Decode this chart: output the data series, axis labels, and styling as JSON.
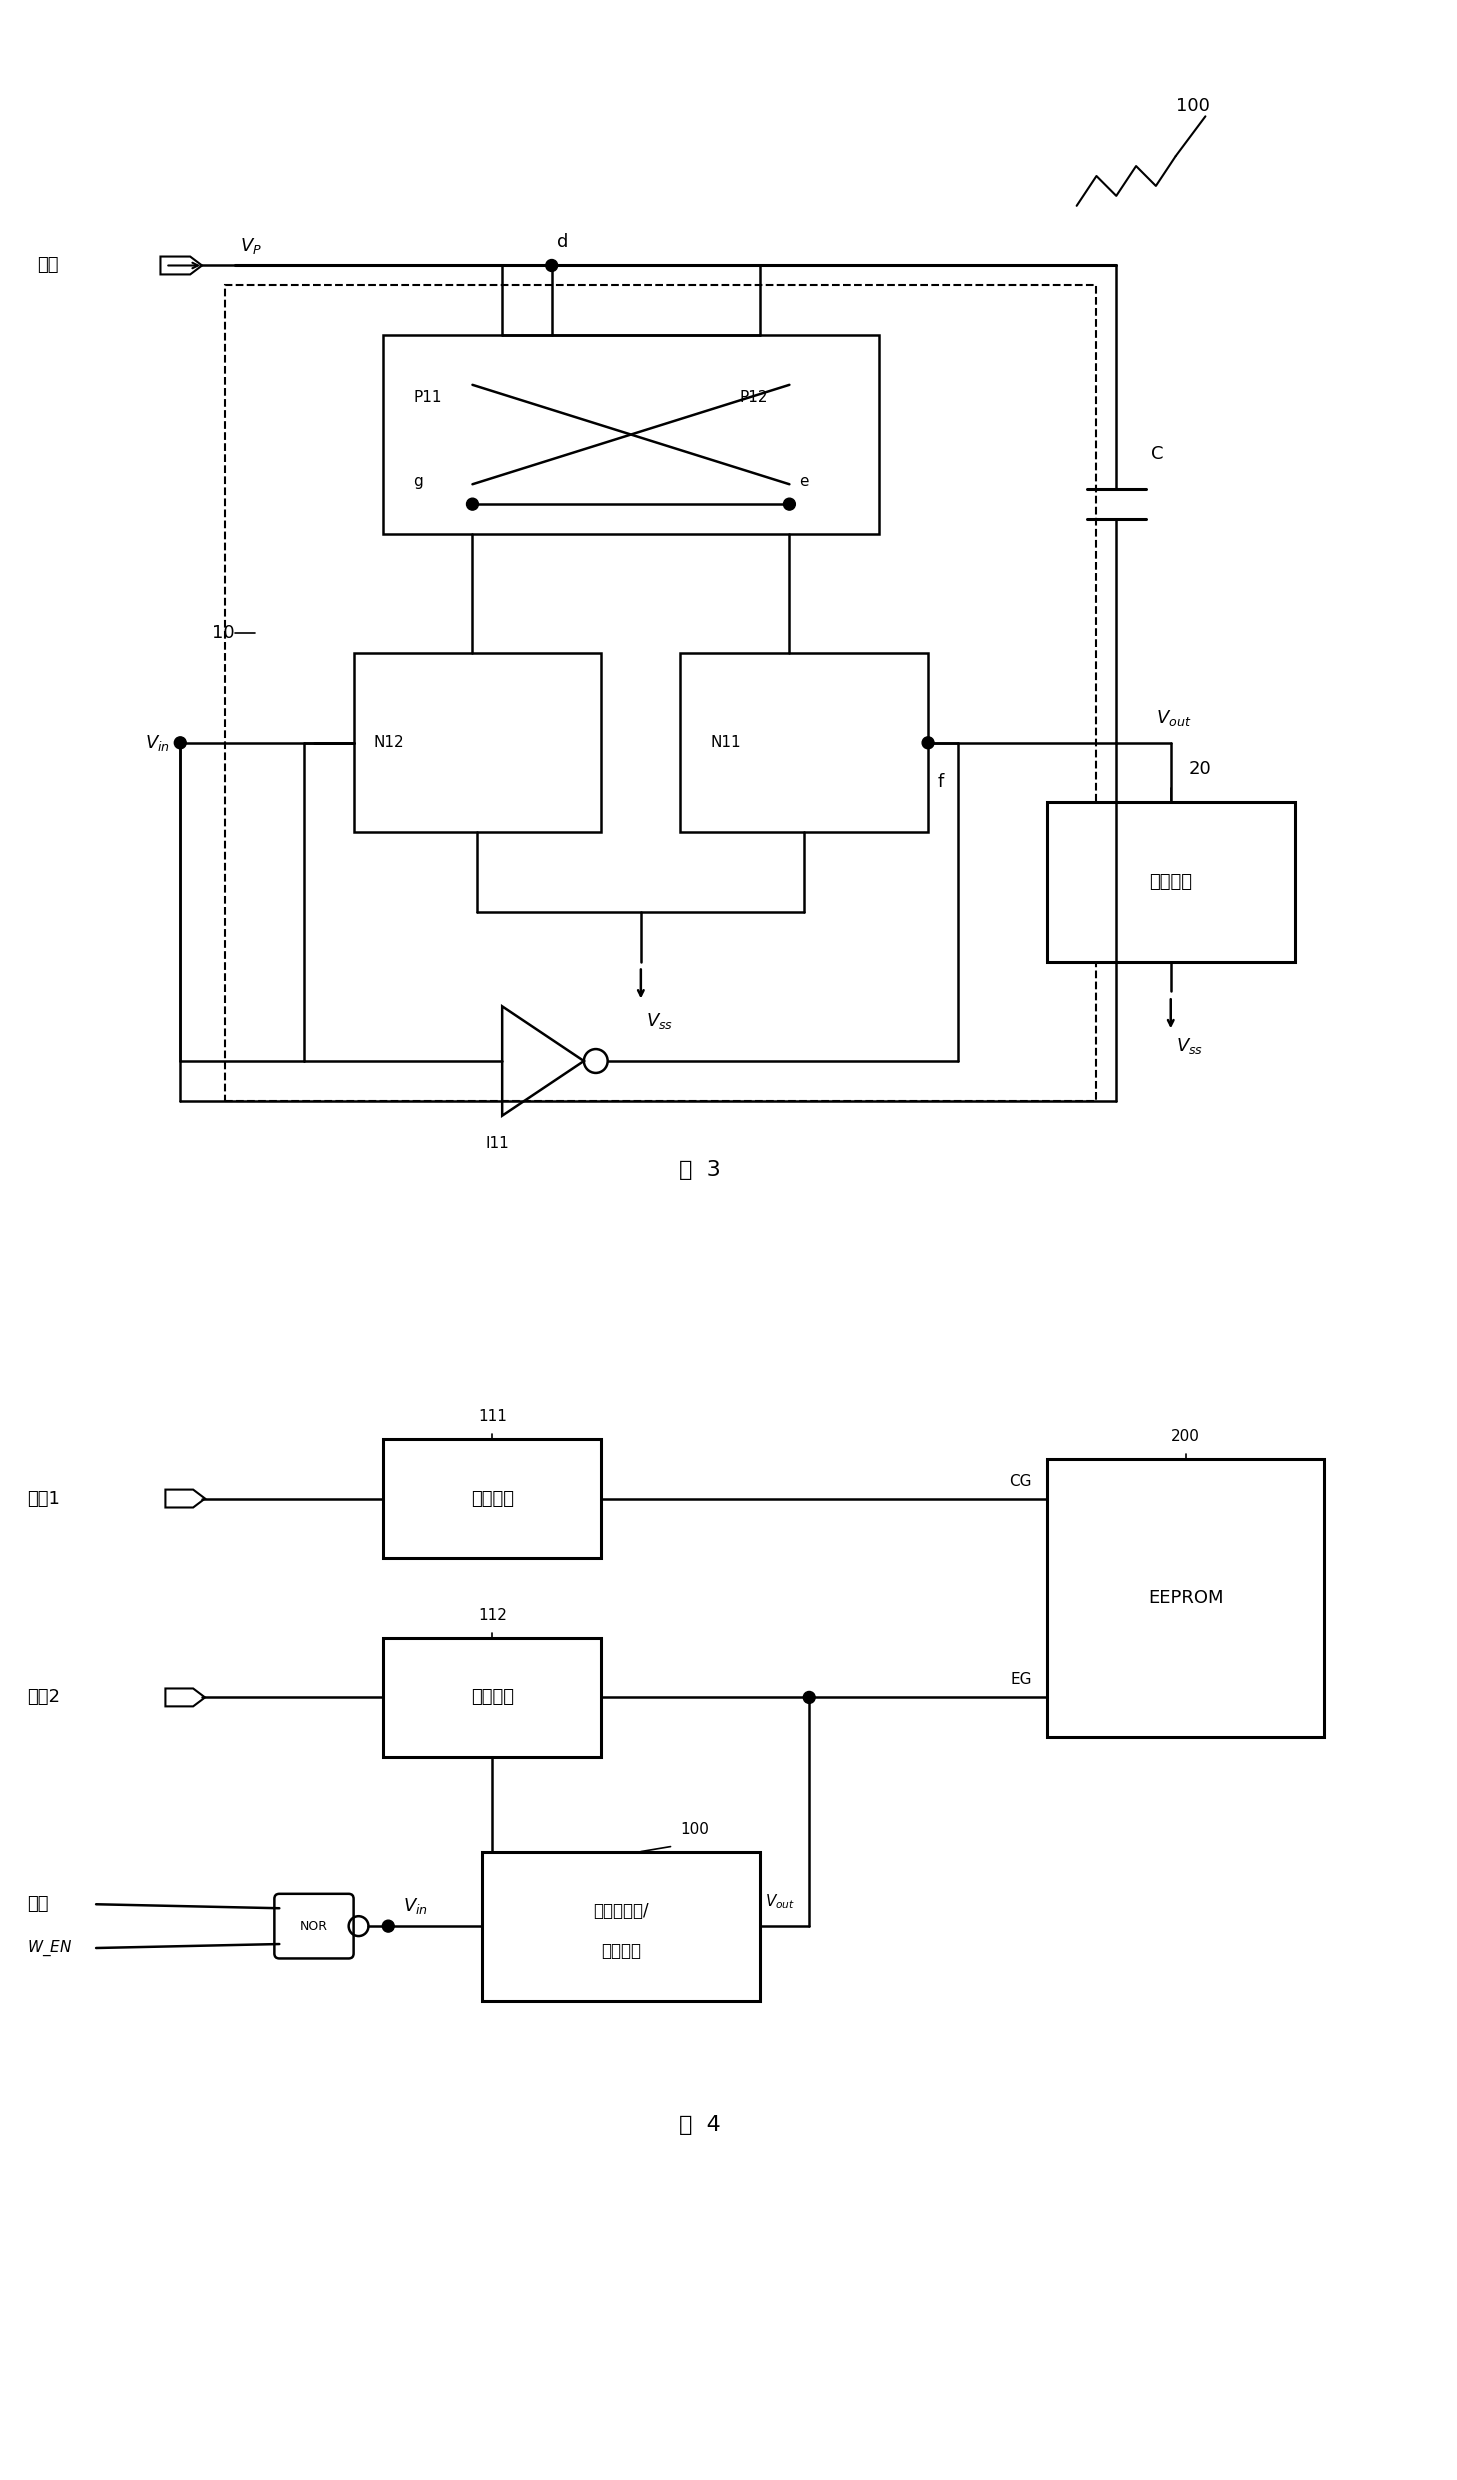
{
  "fig_width": 14.57,
  "fig_height": 24.8,
  "bg_color": "#ffffff",
  "line_color": "#000000",
  "fig3_title": "图  3",
  "fig4_title": "图  4",
  "label_100_top": "100",
  "label_10": "10",
  "label_20": "20"
}
